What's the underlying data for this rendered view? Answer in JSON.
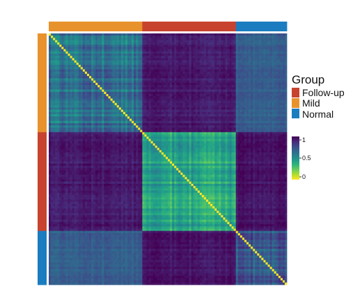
{
  "chart_data": {
    "type": "heatmap",
    "title": "",
    "xlabel": "",
    "ylabel": "",
    "groups_order": [
      "Mild",
      "Follow-up",
      "Normal"
    ],
    "group_sizes": {
      "Mild": 44,
      "Follow-up": 44,
      "Normal": 24
    },
    "block_mean_values": {
      "Mild-Mild": 0.62,
      "Mild-Follow-up": 0.93,
      "Mild-Normal": 0.7,
      "Follow-up-Follow-up": 0.42,
      "Follow-up-Normal": 0.95,
      "Normal-Normal": 0.72
    },
    "diagonal_value": 0,
    "colorbar": {
      "min": 0,
      "max": 1,
      "ticks": [
        "1",
        "0.5",
        "0"
      ]
    },
    "legend": {
      "title": "Group",
      "placement": "right",
      "entries": [
        {
          "label": "Follow-up",
          "color": "#c8432f"
        },
        {
          "label": "Mild",
          "color": "#e8922e"
        },
        {
          "label": "Normal",
          "color": "#1b7dc0"
        }
      ]
    },
    "palette": [
      "#fde725",
      "#b5de2b",
      "#6ece58",
      "#35b779",
      "#1f9e89",
      "#26828e",
      "#31688e",
      "#3e4989",
      "#482878",
      "#440154"
    ]
  }
}
